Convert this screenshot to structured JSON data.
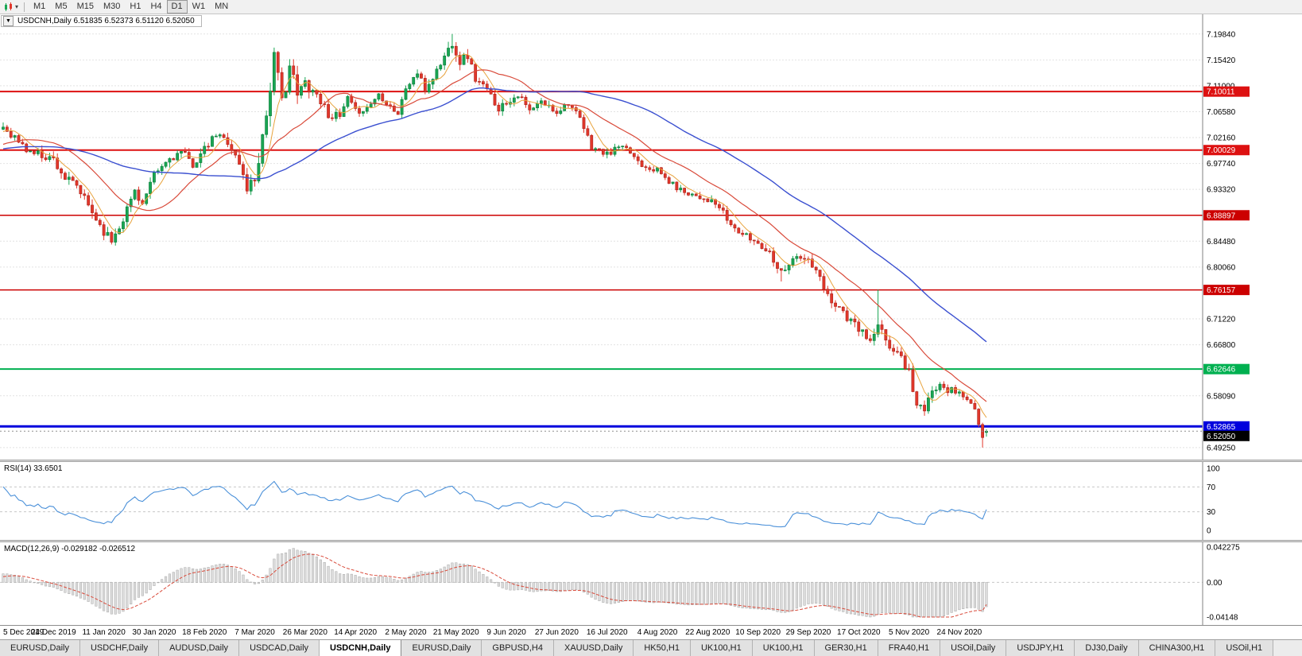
{
  "toolbar": {
    "timeframes": [
      "M1",
      "M5",
      "M15",
      "M30",
      "H1",
      "H4",
      "D1",
      "W1",
      "MN"
    ],
    "active_timeframe": "D1"
  },
  "chart_header": {
    "collapse_icon": "▼",
    "title": "USDCNH,Daily  6.51835 6.52373 6.51120 6.52050"
  },
  "quote": {
    "symbol": "USDCNH",
    "period": "Daily",
    "open": "6.51835",
    "high": "6.52373",
    "low": "6.51120",
    "close": "6.52050"
  },
  "rsi_panel": {
    "label": "RSI(14) 33.6501"
  },
  "macd_panel": {
    "label": "MACD(12,26,9) -0.029182 -0.026512"
  },
  "date_axis": [
    "5 Dec 2019",
    "24 Dec 2019",
    "11 Jan 2020",
    "30 Jan 2020",
    "18 Feb 2020",
    "7 Mar 2020",
    "26 Mar 2020",
    "14 Apr 2020",
    "2 May 2020",
    "21 May 2020",
    "9 Jun 2020",
    "27 Jun 2020",
    "16 Jul 2020",
    "4 Aug 2020",
    "22 Aug 2020",
    "10 Sep 2020",
    "29 Sep 2020",
    "17 Oct 2020",
    "5 Nov 2020",
    "24 Nov 2020"
  ],
  "tabs": {
    "items": [
      "EURUSD,Daily",
      "USDCHF,Daily",
      "AUDUSD,Daily",
      "USDCAD,Daily",
      "USDCNH,Daily",
      "EURUSD,Daily",
      "GBPUSD,H4",
      "XAUUSD,Daily",
      "HK50,H1",
      "UK100,H1",
      "UK100,H1",
      "GER30,H1",
      "FRA40,H1",
      "USOil,Daily",
      "USDJPY,H1",
      "DJ30,Daily",
      "CHINA300,H1",
      "USOil,H1"
    ],
    "active_index": 4
  },
  "chart_data": {
    "type": "candlestick",
    "symbol": "USDCNH",
    "timeframe": "Daily",
    "title": "USDCNH,Daily",
    "last_quote": {
      "open": 6.51835,
      "high": 6.52373,
      "low": 6.5112,
      "close": 6.5205
    },
    "bars": 255,
    "bar_spacing": 4.87,
    "candle_width": 3.2,
    "seed": 11,
    "colors": {
      "up": "#19a653",
      "up_border": "#0c7a3a",
      "down": "#e2372b",
      "down_border": "#a8231b"
    },
    "price_axis": {
      "min": 6.472,
      "max": 7.232,
      "ticks": [
        7.1984,
        7.1542,
        7.11,
        7.0658,
        7.0216,
        6.9774,
        6.9332,
        6.8448,
        6.8006,
        6.7122,
        6.668,
        6.5809,
        6.4925
      ]
    },
    "close_anchors": [
      [
        -60,
        6.97
      ],
      [
        -35,
        7.01
      ],
      [
        -15,
        6.99
      ],
      [
        0,
        7.04
      ],
      [
        3,
        7.022
      ],
      [
        6,
        7.0
      ],
      [
        10,
        6.992
      ],
      [
        13,
        6.985
      ],
      [
        16,
        6.952
      ],
      [
        19,
        6.938
      ],
      [
        22,
        6.905
      ],
      [
        26,
        6.862
      ],
      [
        28,
        6.846
      ],
      [
        31,
        6.884
      ],
      [
        34,
        6.932
      ],
      [
        36,
        6.908
      ],
      [
        39,
        6.956
      ],
      [
        43,
        6.986
      ],
      [
        46,
        6.996
      ],
      [
        49,
        6.976
      ],
      [
        52,
        7.0
      ],
      [
        55,
        7.026
      ],
      [
        58,
        7.016
      ],
      [
        61,
        6.976
      ],
      [
        63,
        6.936
      ],
      [
        65,
        6.952
      ],
      [
        68,
        7.062
      ],
      [
        70,
        7.158
      ],
      [
        72,
        7.082
      ],
      [
        74,
        7.146
      ],
      [
        76,
        7.092
      ],
      [
        78,
        7.116
      ],
      [
        81,
        7.096
      ],
      [
        84,
        7.062
      ],
      [
        87,
        7.056
      ],
      [
        89,
        7.088
      ],
      [
        91,
        7.066
      ],
      [
        94,
        7.072
      ],
      [
        97,
        7.096
      ],
      [
        100,
        7.076
      ],
      [
        102,
        7.062
      ],
      [
        104,
        7.106
      ],
      [
        107,
        7.132
      ],
      [
        109,
        7.102
      ],
      [
        112,
        7.136
      ],
      [
        115,
        7.172
      ],
      [
        116,
        7.186
      ],
      [
        118,
        7.152
      ],
      [
        120,
        7.162
      ],
      [
        122,
        7.122
      ],
      [
        125,
        7.102
      ],
      [
        128,
        7.072
      ],
      [
        130,
        7.082
      ],
      [
        133,
        7.096
      ],
      [
        136,
        7.066
      ],
      [
        139,
        7.082
      ],
      [
        143,
        7.066
      ],
      [
        146,
        7.082
      ],
      [
        149,
        7.052
      ],
      [
        152,
        7.006
      ],
      [
        156,
        6.992
      ],
      [
        159,
        7.006
      ],
      [
        162,
        6.996
      ],
      [
        165,
        6.976
      ],
      [
        169,
        6.966
      ],
      [
        172,
        6.946
      ],
      [
        175,
        6.932
      ],
      [
        178,
        6.926
      ],
      [
        182,
        6.916
      ],
      [
        185,
        6.902
      ],
      [
        188,
        6.872
      ],
      [
        191,
        6.856
      ],
      [
        195,
        6.842
      ],
      [
        198,
        6.826
      ],
      [
        201,
        6.792
      ],
      [
        204,
        6.816
      ],
      [
        208,
        6.812
      ],
      [
        210,
        6.792
      ],
      [
        213,
        6.752
      ],
      [
        216,
        6.732
      ],
      [
        219,
        6.706
      ],
      [
        221,
        6.696
      ],
      [
        224,
        6.672
      ],
      [
        226,
        6.698
      ],
      [
        229,
        6.666
      ],
      [
        232,
        6.646
      ],
      [
        234,
        6.622
      ],
      [
        236,
        6.566
      ],
      [
        238,
        6.556
      ],
      [
        240,
        6.586
      ],
      [
        242,
        6.606
      ],
      [
        244,
        6.592
      ],
      [
        247,
        6.586
      ],
      [
        249,
        6.576
      ],
      [
        251,
        6.556
      ],
      [
        253,
        6.506
      ],
      [
        254,
        6.5205
      ]
    ],
    "vol_anchors": [
      [
        -60,
        0.012
      ],
      [
        0,
        0.014
      ],
      [
        20,
        0.018
      ],
      [
        30,
        0.016
      ],
      [
        60,
        0.016
      ],
      [
        66,
        0.03
      ],
      [
        74,
        0.034
      ],
      [
        80,
        0.02
      ],
      [
        90,
        0.012
      ],
      [
        110,
        0.014
      ],
      [
        117,
        0.02
      ],
      [
        125,
        0.014
      ],
      [
        150,
        0.012
      ],
      [
        170,
        0.011
      ],
      [
        200,
        0.014
      ],
      [
        214,
        0.016
      ],
      [
        228,
        0.016
      ],
      [
        236,
        0.018
      ],
      [
        246,
        0.012
      ],
      [
        254,
        0.008
      ]
    ],
    "spikes": [
      {
        "i": 28,
        "low": 6.841
      },
      {
        "i": 70,
        "high": 7.165
      },
      {
        "i": 116,
        "high": 7.1984
      },
      {
        "i": 201,
        "low": 6.776
      },
      {
        "i": 226,
        "high": 6.762
      },
      {
        "i": 253,
        "low": 6.4925
      }
    ],
    "moving_averages": [
      {
        "name": "fast",
        "period": 6,
        "color": "#e8a33d",
        "width": 1
      },
      {
        "name": "medium",
        "period": 20,
        "color": "#d94a3a",
        "width": 1.2
      },
      {
        "name": "slow",
        "period": 55,
        "color": "#3a4fd0",
        "width": 1.4
      }
    ],
    "hlines": [
      {
        "price": 7.10011,
        "color": "#dd1111",
        "width": 2,
        "badge": "7.10011"
      },
      {
        "price": 7.00029,
        "color": "#dd1111",
        "width": 2,
        "badge": "7.00029"
      },
      {
        "price": 6.88897,
        "color": "#cc0000",
        "width": 1.6,
        "badge": "6.88897"
      },
      {
        "price": 6.76157,
        "color": "#cc0000",
        "width": 1.6,
        "badge": "6.76157"
      },
      {
        "price": 6.62646,
        "color": "#00b050",
        "width": 2,
        "badge": "6.62646"
      },
      {
        "price": 6.52865,
        "color": "#0000dd",
        "width": 3,
        "badge": "6.52865"
      }
    ],
    "current_price": {
      "price": 6.5205,
      "badge": "6.52050",
      "color": "#000000"
    },
    "rsi": {
      "period": 14,
      "value": 33.6501,
      "color": "#4a90d9",
      "levels": [
        100,
        70,
        30,
        0
      ],
      "overbought": 70,
      "oversold": 30
    },
    "macd": {
      "fast": 12,
      "slow": 26,
      "signal": 9,
      "macd_value": -0.029182,
      "signal_value": -0.026512,
      "axis_max": 0.042275,
      "axis_min": -0.04148,
      "axis_labels": [
        "0.042275",
        "0.00",
        "-0.04148"
      ],
      "histogram_fill": "#dcdcdc",
      "histogram_border": "#a8a8a8",
      "signal_color": "#d94a3a"
    }
  }
}
